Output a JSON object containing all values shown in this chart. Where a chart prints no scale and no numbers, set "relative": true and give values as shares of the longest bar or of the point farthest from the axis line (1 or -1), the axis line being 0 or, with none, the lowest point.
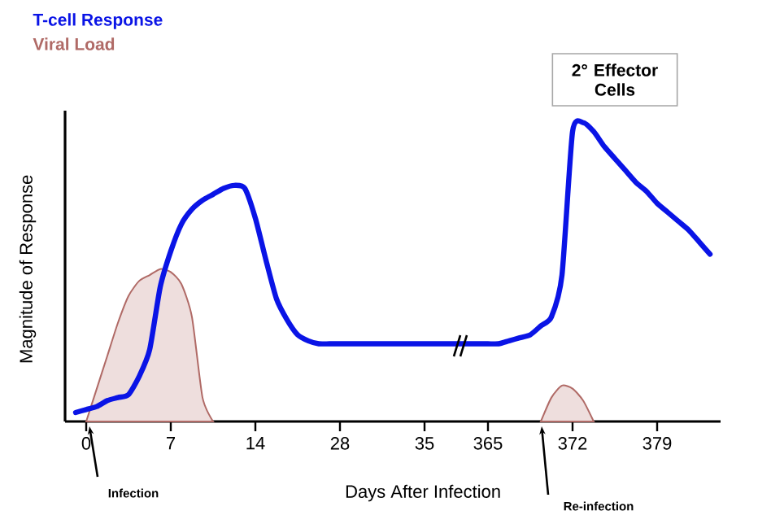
{
  "chart_data": {
    "type": "line",
    "relative": true,
    "xlabel": "Days After Infection",
    "ylabel": "Magnitude of Response",
    "legend": "top left",
    "categories": [
      null,
      null,
      "0",
      null,
      null,
      null,
      null,
      null,
      null,
      null,
      "7",
      null,
      null,
      null,
      null,
      null,
      null,
      null,
      "14",
      null,
      null,
      null,
      null,
      null,
      null,
      null,
      "28",
      null,
      null,
      null,
      null,
      null,
      null,
      null,
      "35",
      null,
      null,
      null,
      null,
      null,
      "365",
      null,
      null,
      null,
      null,
      null,
      null,
      null,
      "372",
      null,
      null,
      null,
      null,
      null,
      null,
      null,
      "379",
      null,
      null,
      null,
      null,
      null,
      null
    ],
    "series": [
      {
        "name": "T-cell Response",
        "color": "#0a14e6",
        "values": [
          null,
          0.03,
          0.04,
          0.05,
          0.07,
          0.08,
          0.09,
          0.15,
          0.24,
          0.45,
          0.57,
          0.66,
          0.71,
          0.74,
          0.76,
          0.78,
          0.79,
          0.78,
          0.68,
          0.54,
          0.41,
          0.34,
          0.29,
          0.27,
          0.26,
          0.26,
          0.26,
          0.26,
          0.26,
          0.26,
          0.26,
          0.26,
          0.26,
          0.26,
          0.26,
          0.26,
          0.26,
          0.26,
          0.26,
          0.26,
          0.26,
          0.26,
          0.27,
          0.28,
          0.29,
          0.32,
          0.35,
          0.49,
          0.97,
          1,
          0.97,
          0.92,
          0.88,
          0.84,
          0.8,
          0.77,
          0.73,
          0.7,
          0.67,
          0.64,
          0.6,
          0.56,
          null
        ]
      },
      {
        "name": "Viral Load",
        "type": "area",
        "color": "#b06a66",
        "values": [
          null,
          null,
          0,
          0.11,
          0.22,
          0.33,
          0.42,
          0.47,
          0.49,
          0.51,
          0.5,
          0.46,
          0.35,
          0.08,
          0,
          null,
          null,
          null,
          null,
          null,
          null,
          null,
          null,
          null,
          null,
          null,
          null,
          null,
          null,
          null,
          null,
          null,
          null,
          null,
          null,
          null,
          null,
          null,
          null,
          null,
          null,
          null,
          null,
          null,
          null,
          0,
          0.08,
          0.12,
          0.11,
          0.07,
          0,
          null,
          null,
          null,
          null,
          null,
          null,
          null,
          null,
          null,
          null,
          null,
          null
        ]
      }
    ],
    "annotations": [
      "Infection",
      "Re-infection",
      "2° Effector Cells"
    ]
  }
}
